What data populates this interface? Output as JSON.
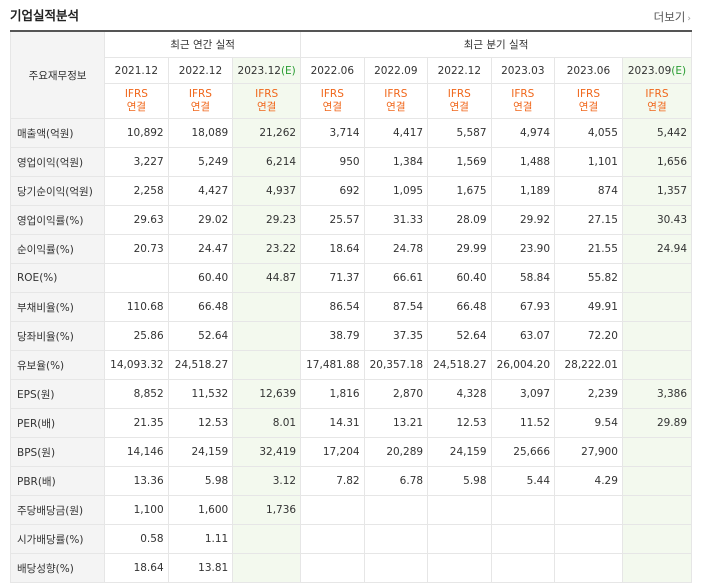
{
  "title": "기업실적분석",
  "more_label": "더보기",
  "header": {
    "row_label": "주요재무정보",
    "annual_group": "최근 연간 실적",
    "quarter_group": "최근 분기 실적",
    "periods": [
      {
        "label": "2021.12",
        "est": ""
      },
      {
        "label": "2022.12",
        "est": ""
      },
      {
        "label": "2023.12",
        "est": "(E)"
      },
      {
        "label": "2022.06",
        "est": ""
      },
      {
        "label": "2022.09",
        "est": ""
      },
      {
        "label": "2022.12",
        "est": ""
      },
      {
        "label": "2023.03",
        "est": ""
      },
      {
        "label": "2023.06",
        "est": ""
      },
      {
        "label": "2023.09",
        "est": "(E)"
      }
    ],
    "ifrs_line1": "IFRS",
    "ifrs_line2": "연결"
  },
  "rows": [
    {
      "label": "매출액(억원)",
      "values": [
        "10,892",
        "18,089",
        "21,262",
        "3,714",
        "4,417",
        "5,587",
        "4,974",
        "4,055",
        "5,442"
      ]
    },
    {
      "label": "영업이익(억원)",
      "values": [
        "3,227",
        "5,249",
        "6,214",
        "950",
        "1,384",
        "1,569",
        "1,488",
        "1,101",
        "1,656"
      ]
    },
    {
      "label": "당기순이익(억원)",
      "values": [
        "2,258",
        "4,427",
        "4,937",
        "692",
        "1,095",
        "1,675",
        "1,189",
        "874",
        "1,357"
      ]
    },
    {
      "label": "영업이익률(%)",
      "values": [
        "29.63",
        "29.02",
        "29.23",
        "25.57",
        "31.33",
        "28.09",
        "29.92",
        "27.15",
        "30.43"
      ]
    },
    {
      "label": "순이익률(%)",
      "values": [
        "20.73",
        "24.47",
        "23.22",
        "18.64",
        "24.78",
        "29.99",
        "23.90",
        "21.55",
        "24.94"
      ]
    },
    {
      "label": "ROE(%)",
      "values": [
        "",
        "60.40",
        "44.87",
        "71.37",
        "66.61",
        "60.40",
        "58.84",
        "55.82",
        ""
      ]
    },
    {
      "label": "부채비율(%)",
      "values": [
        "110.68",
        "66.48",
        "",
        "86.54",
        "87.54",
        "66.48",
        "67.93",
        "49.91",
        ""
      ]
    },
    {
      "label": "당좌비율(%)",
      "values": [
        "25.86",
        "52.64",
        "",
        "38.79",
        "37.35",
        "52.64",
        "63.07",
        "72.20",
        ""
      ]
    },
    {
      "label": "유보율(%)",
      "values": [
        "14,093.32",
        "24,518.27",
        "",
        "17,481.88",
        "20,357.18",
        "24,518.27",
        "26,004.20",
        "28,222.01",
        ""
      ]
    },
    {
      "label": "EPS(원)",
      "values": [
        "8,852",
        "11,532",
        "12,639",
        "1,816",
        "2,870",
        "4,328",
        "3,097",
        "2,239",
        "3,386"
      ]
    },
    {
      "label": "PER(배)",
      "values": [
        "21.35",
        "12.53",
        "8.01",
        "14.31",
        "13.21",
        "12.53",
        "11.52",
        "9.54",
        "29.89"
      ]
    },
    {
      "label": "BPS(원)",
      "values": [
        "14,146",
        "24,159",
        "32,419",
        "17,204",
        "20,289",
        "24,159",
        "25,666",
        "27,900",
        ""
      ]
    },
    {
      "label": "PBR(배)",
      "values": [
        "13.36",
        "5.98",
        "3.12",
        "7.82",
        "6.78",
        "5.98",
        "5.44",
        "4.29",
        ""
      ]
    },
    {
      "label": "주당배당금(원)",
      "values": [
        "1,100",
        "1,600",
        "1,736",
        "",
        "",
        "",
        "",
        "",
        ""
      ]
    },
    {
      "label": "시가배당률(%)",
      "values": [
        "0.58",
        "1.11",
        "",
        "",
        "",
        "",
        "",
        "",
        ""
      ]
    },
    {
      "label": "배당성향(%)",
      "values": [
        "18.64",
        "13.81",
        "",
        "",
        "",
        "",
        "",
        "",
        ""
      ]
    }
  ]
}
